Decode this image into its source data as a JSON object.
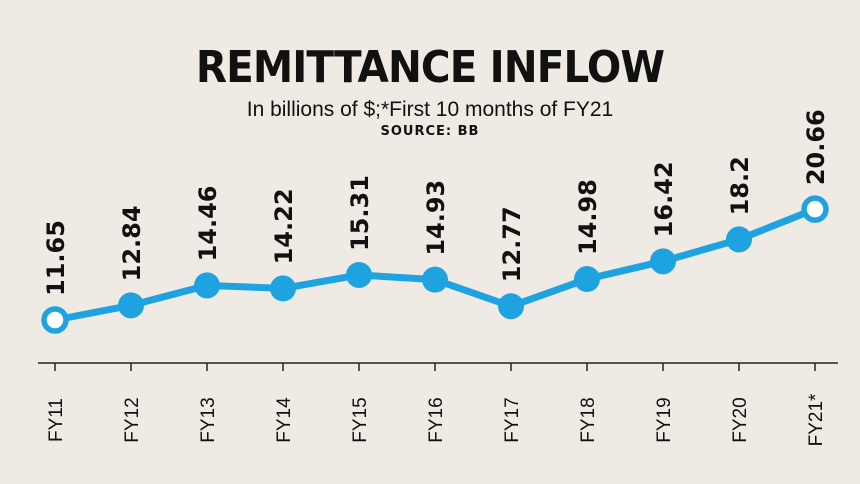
{
  "header": {
    "title": "REMITTANCE INFLOW",
    "subtitle": "In billions of $;*First 10 months of FY21",
    "source": "SOURCE: BB"
  },
  "colors": {
    "line": "#1fa3e0",
    "marker_fill": "#1fa3e0",
    "hollow_marker_fill": "#ffffff",
    "background": "#efebe4",
    "axis": "#222222",
    "text": "#111111"
  },
  "chart_data": {
    "type": "line",
    "title": "REMITTANCE INFLOW",
    "subtitle": "In billions of $;*First 10 months of FY21",
    "source": "SOURCE: BB",
    "xlabel": "",
    "ylabel": "",
    "categories": [
      "FY11",
      "FY12",
      "FY13",
      "FY14",
      "FY15",
      "FY16",
      "FY17",
      "FY18",
      "FY19",
      "FY20",
      "FY21*"
    ],
    "data_labels": [
      "11.65",
      "12.84",
      "14.46",
      "14.22",
      "15.31",
      "14.93",
      "12.77",
      "14.98",
      "16.42",
      "18.2",
      "20.66"
    ],
    "series": [
      {
        "values": [
          11.65,
          12.84,
          14.46,
          14.22,
          15.31,
          14.93,
          12.77,
          14.98,
          16.42,
          18.2,
          20.66
        ]
      }
    ],
    "hollow_markers": [
      "FY11",
      "FY21*"
    ],
    "grid": false,
    "legend": "none"
  }
}
